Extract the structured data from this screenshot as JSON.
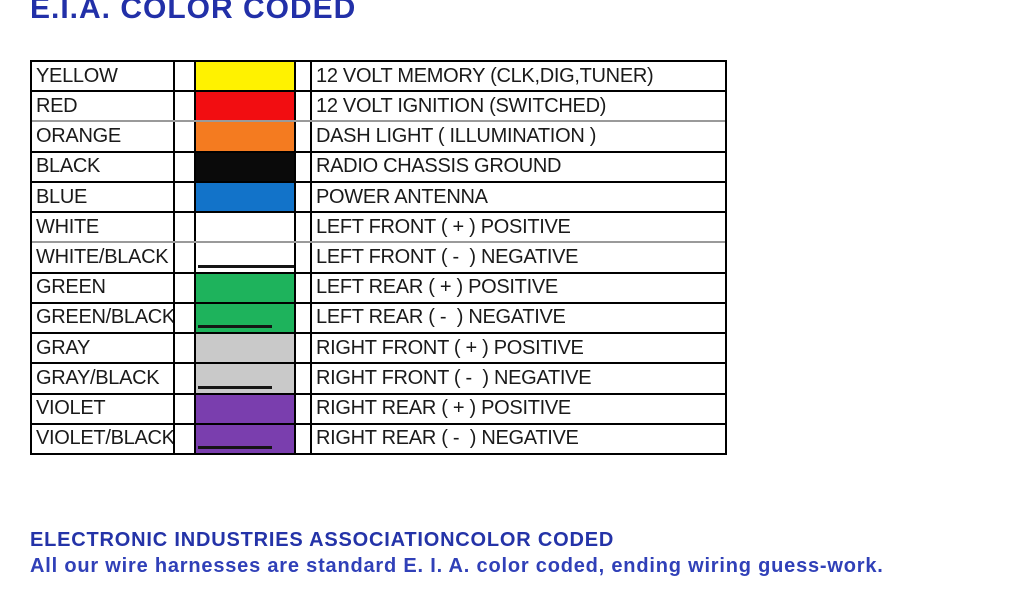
{
  "page": {
    "title": "E.I.A. COLOR CODED"
  },
  "colors": {
    "title_blue": "#2230a8",
    "footer_heading_blue": "#2433a8",
    "footer_body_blue": "#3040b8",
    "table_border": "#000000",
    "gray_separator": "#9a9a9a"
  },
  "table": {
    "rows": [
      {
        "name": "YELLOW",
        "swatch": "#fff200",
        "stripe": false,
        "function": "12 VOLT MEMORY (CLK,DIG,TUNER)"
      },
      {
        "name": "RED",
        "swatch": "#f20d11",
        "stripe": false,
        "function": "12 VOLT IGNITION (SWITCHED)"
      },
      {
        "name": "ORANGE",
        "swatch": "#f47b20",
        "stripe": false,
        "function": "DASH LIGHT ( ILLUMINATION )"
      },
      {
        "name": "BLACK",
        "swatch": "#0a0a0a",
        "stripe": false,
        "function": "RADIO CHASSIS GROUND"
      },
      {
        "name": "BLUE",
        "swatch": "#1273c9",
        "stripe": false,
        "function": "POWER ANTENNA"
      },
      {
        "name": "WHITE",
        "swatch": "#ffffff",
        "stripe": false,
        "function": "LEFT FRONT ( + ) POSITIVE"
      },
      {
        "name": "WHITE/BLACK",
        "swatch": "#ffffff",
        "stripe": true,
        "function": "LEFT FRONT ( -  ) NEGATIVE"
      },
      {
        "name": "GREEN",
        "swatch": "#1eb35c",
        "stripe": false,
        "function": "LEFT REAR ( + ) POSITIVE"
      },
      {
        "name": "GREEN/BLACK",
        "swatch": "#1eb35c",
        "stripe": true,
        "function": "LEFT REAR ( -  ) NEGATIVE"
      },
      {
        "name": "GRAY",
        "swatch": "#c9c9c9",
        "stripe": false,
        "function": "RIGHT FRONT ( + ) POSITIVE"
      },
      {
        "name": "GRAY/BLACK",
        "swatch": "#c9c9c9",
        "stripe": true,
        "function": "RIGHT FRONT ( -  ) NEGATIVE"
      },
      {
        "name": "VIOLET",
        "swatch": "#7a3eae",
        "stripe": false,
        "function": "RIGHT REAR ( + ) POSITIVE"
      },
      {
        "name": "VIOLET/BLACK",
        "swatch": "#7a3eae",
        "stripe": true,
        "function": "RIGHT REAR ( -  ) NEGATIVE"
      }
    ]
  },
  "footer": {
    "heading": "ELECTRONIC INDUSTRIES ASSOCIATIONCOLOR CODED",
    "body": "All our wire harnesses are standard E. I. A. color coded, ending wiring guess-work."
  }
}
